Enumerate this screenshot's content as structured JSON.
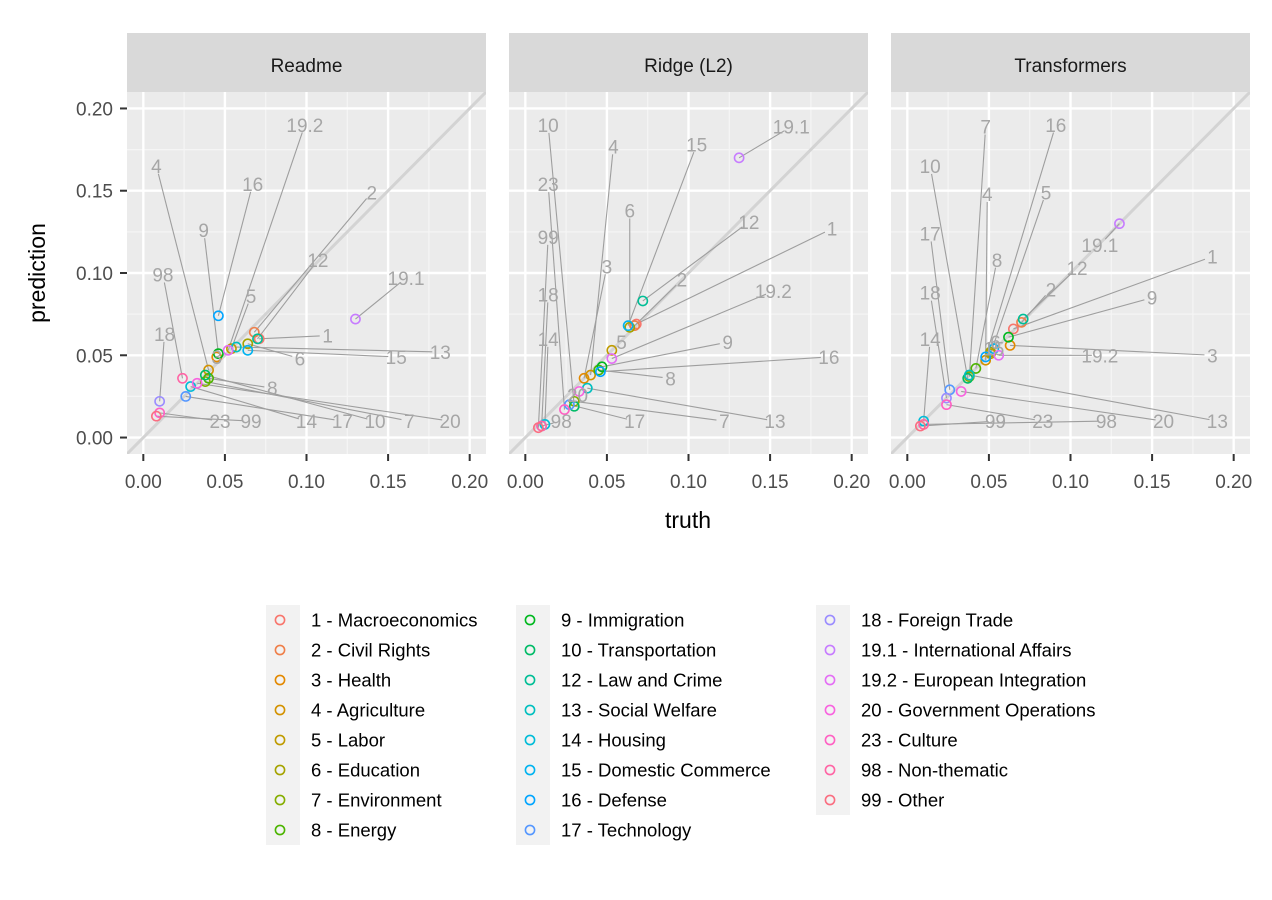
{
  "chart_data": {
    "type": "scatter",
    "xlabel": "truth",
    "ylabel": "prediction",
    "xlim": [
      -0.01,
      0.21
    ],
    "ylim": [
      -0.01,
      0.21
    ],
    "x_ticks": [
      "0.00",
      "0.05",
      "0.10",
      "0.15",
      "0.20"
    ],
    "y_ticks": [
      "0.00",
      "0.05",
      "0.10",
      "0.15",
      "0.20"
    ],
    "reference_line": "y = x",
    "grid": true,
    "legend_position": "bottom",
    "categories": [
      {
        "code": "1",
        "label": "1 - Macroeconomics",
        "color": "#F8766D"
      },
      {
        "code": "2",
        "label": "2 - Civil Rights",
        "color": "#EF7F49"
      },
      {
        "code": "3",
        "label": "3 - Health",
        "color": "#E38900"
      },
      {
        "code": "4",
        "label": "4 - Agriculture",
        "color": "#D39200"
      },
      {
        "code": "5",
        "label": "5 - Labor",
        "color": "#BF9B00"
      },
      {
        "code": "6",
        "label": "6 - Education",
        "color": "#A5A300"
      },
      {
        "code": "7",
        "label": "7 - Environment",
        "color": "#85AD00"
      },
      {
        "code": "8",
        "label": "8 - Energy",
        "color": "#4CB400"
      },
      {
        "code": "9",
        "label": "9 - Immigration",
        "color": "#00B81F"
      },
      {
        "code": "10",
        "label": "10 - Transportation",
        "color": "#00BB67"
      },
      {
        "code": "12",
        "label": "12 - Law and Crime",
        "color": "#00BE96"
      },
      {
        "code": "13",
        "label": "13 - Social Welfare",
        "color": "#00BFBF"
      },
      {
        "code": "14",
        "label": "14 - Housing",
        "color": "#00BCD8"
      },
      {
        "code": "15",
        "label": "15 - Domestic Commerce",
        "color": "#00B3F0"
      },
      {
        "code": "16",
        "label": "16 - Defense",
        "color": "#00A5FF"
      },
      {
        "code": "17",
        "label": "17 - Technology",
        "color": "#5597FF"
      },
      {
        "code": "18",
        "label": "18 - Foreign Trade",
        "color": "#9B8CFF"
      },
      {
        "code": "19.1",
        "label": "19.1 - International Affairs",
        "color": "#C77CFF"
      },
      {
        "code": "19.2",
        "label": "19.2 - European Integration",
        "color": "#E46EF5"
      },
      {
        "code": "20",
        "label": "20 - Government Operations",
        "color": "#F863DF"
      },
      {
        "code": "23",
        "label": "23 - Culture",
        "color": "#FF61C3"
      },
      {
        "code": "98",
        "label": "98 - Non-thematic",
        "color": "#FF65A5"
      },
      {
        "code": "99",
        "label": "99 - Other",
        "color": "#FA6E81"
      }
    ],
    "panels": [
      {
        "title": "Readme",
        "points": [
          {
            "code": "1",
            "x": 0.071,
            "y": 0.06,
            "lx": 0.113,
            "ly": 0.062
          },
          {
            "code": "2",
            "x": 0.068,
            "y": 0.064,
            "lx": 0.14,
            "ly": 0.149
          },
          {
            "code": "3",
            "x": 0.045,
            "y": 0.049,
            "lx": 0.045,
            "ly": 0.049
          },
          {
            "code": "4",
            "x": 0.04,
            "y": 0.041,
            "lx": 0.008,
            "ly": 0.165
          },
          {
            "code": "5",
            "x": 0.054,
            "y": 0.054,
            "lx": 0.066,
            "ly": 0.086
          },
          {
            "code": "6",
            "x": 0.064,
            "y": 0.057,
            "lx": 0.096,
            "ly": 0.048
          },
          {
            "code": "7",
            "x": 0.038,
            "y": 0.034,
            "lx": 0.163,
            "ly": 0.01
          },
          {
            "code": "8",
            "x": 0.04,
            "y": 0.036,
            "lx": 0.079,
            "ly": 0.03
          },
          {
            "code": "9",
            "x": 0.046,
            "y": 0.051,
            "lx": 0.037,
            "ly": 0.126
          },
          {
            "code": "10",
            "x": 0.038,
            "y": 0.038,
            "lx": 0.142,
            "ly": 0.01
          },
          {
            "code": "12",
            "x": 0.07,
            "y": 0.06,
            "lx": 0.107,
            "ly": 0.108
          },
          {
            "code": "13",
            "x": 0.057,
            "y": 0.055,
            "lx": 0.182,
            "ly": 0.052
          },
          {
            "code": "14",
            "x": 0.029,
            "y": 0.031,
            "lx": 0.1,
            "ly": 0.01
          },
          {
            "code": "15",
            "x": 0.064,
            "y": 0.053,
            "lx": 0.155,
            "ly": 0.049
          },
          {
            "code": "16",
            "x": 0.046,
            "y": 0.074,
            "lx": 0.067,
            "ly": 0.154
          },
          {
            "code": "17",
            "x": 0.026,
            "y": 0.025,
            "lx": 0.122,
            "ly": 0.01
          },
          {
            "code": "18",
            "x": 0.01,
            "y": 0.022,
            "lx": 0.013,
            "ly": 0.063
          },
          {
            "code": "19.1",
            "x": 0.13,
            "y": 0.072,
            "lx": 0.161,
            "ly": 0.097
          },
          {
            "code": "19.2",
            "x": 0.052,
            "y": 0.053,
            "lx": 0.099,
            "ly": 0.19
          },
          {
            "code": "20",
            "x": 0.033,
            "y": 0.033,
            "lx": 0.188,
            "ly": 0.01
          },
          {
            "code": "23",
            "x": 0.01,
            "y": 0.015,
            "lx": 0.047,
            "ly": 0.01
          },
          {
            "code": "98",
            "x": 0.024,
            "y": 0.036,
            "lx": 0.012,
            "ly": 0.099
          },
          {
            "code": "99",
            "x": 0.008,
            "y": 0.013,
            "lx": 0.066,
            "ly": 0.01
          }
        ]
      },
      {
        "title": "Ridge (L2)",
        "points": [
          {
            "code": "1",
            "x": 0.068,
            "y": 0.069,
            "lx": 0.188,
            "ly": 0.127
          },
          {
            "code": "2",
            "x": 0.067,
            "y": 0.068,
            "lx": 0.096,
            "ly": 0.096
          },
          {
            "code": "3",
            "x": 0.036,
            "y": 0.036,
            "lx": 0.05,
            "ly": 0.104
          },
          {
            "code": "4",
            "x": 0.04,
            "y": 0.038,
            "lx": 0.054,
            "ly": 0.177
          },
          {
            "code": "5",
            "x": 0.053,
            "y": 0.053,
            "lx": 0.059,
            "ly": 0.058
          },
          {
            "code": "6",
            "x": 0.064,
            "y": 0.067,
            "lx": 0.064,
            "ly": 0.138
          },
          {
            "code": "7",
            "x": 0.03,
            "y": 0.022,
            "lx": 0.122,
            "ly": 0.01
          },
          {
            "code": "8",
            "x": 0.045,
            "y": 0.041,
            "lx": 0.089,
            "ly": 0.036
          },
          {
            "code": "9",
            "x": 0.047,
            "y": 0.043,
            "lx": 0.124,
            "ly": 0.058
          },
          {
            "code": "10",
            "x": 0.03,
            "y": 0.019,
            "lx": 0.014,
            "ly": 0.19
          },
          {
            "code": "12",
            "x": 0.072,
            "y": 0.083,
            "lx": 0.137,
            "ly": 0.131
          },
          {
            "code": "13",
            "x": 0.038,
            "y": 0.03,
            "lx": 0.153,
            "ly": 0.01
          },
          {
            "code": "14",
            "x": 0.012,
            "y": 0.008,
            "lx": 0.014,
            "ly": 0.06
          },
          {
            "code": "15",
            "x": 0.063,
            "y": 0.068,
            "lx": 0.105,
            "ly": 0.178
          },
          {
            "code": "16",
            "x": 0.046,
            "y": 0.04,
            "lx": 0.186,
            "ly": 0.049
          },
          {
            "code": "17",
            "x": 0.027,
            "y": 0.02,
            "lx": 0.067,
            "ly": 0.01
          },
          {
            "code": "18",
            "x": 0.01,
            "y": 0.007,
            "lx": 0.014,
            "ly": 0.087
          },
          {
            "code": "19.1",
            "x": 0.131,
            "y": 0.17,
            "lx": 0.163,
            "ly": 0.189
          },
          {
            "code": "19.2",
            "x": 0.053,
            "y": 0.048,
            "lx": 0.152,
            "ly": 0.089
          },
          {
            "code": "20",
            "x": 0.033,
            "y": 0.028,
            "lx": 0.032,
            "ly": 0.026
          },
          {
            "code": "23",
            "x": 0.024,
            "y": 0.017,
            "lx": 0.014,
            "ly": 0.154
          },
          {
            "code": "98",
            "x": 0.01,
            "y": 0.007,
            "lx": 0.022,
            "ly": 0.01
          },
          {
            "code": "99",
            "x": 0.008,
            "y": 0.006,
            "lx": 0.014,
            "ly": 0.122
          }
        ]
      },
      {
        "title": "Transformers",
        "points": [
          {
            "code": "1",
            "x": 0.065,
            "y": 0.066,
            "lx": 0.187,
            "ly": 0.11
          },
          {
            "code": "2",
            "x": 0.07,
            "y": 0.07,
            "lx": 0.088,
            "ly": 0.09
          },
          {
            "code": "3",
            "x": 0.063,
            "y": 0.056,
            "lx": 0.187,
            "ly": 0.05
          },
          {
            "code": "4",
            "x": 0.048,
            "y": 0.047,
            "lx": 0.049,
            "ly": 0.148
          },
          {
            "code": "5",
            "x": 0.051,
            "y": 0.051,
            "lx": 0.085,
            "ly": 0.149
          },
          {
            "code": "6",
            "x": 0.051,
            "y": 0.052,
            "lx": 0.054,
            "ly": 0.058
          },
          {
            "code": "7",
            "x": 0.038,
            "y": 0.037,
            "lx": 0.048,
            "ly": 0.189
          },
          {
            "code": "8",
            "x": 0.042,
            "y": 0.042,
            "lx": 0.055,
            "ly": 0.108
          },
          {
            "code": "9",
            "x": 0.062,
            "y": 0.061,
            "lx": 0.15,
            "ly": 0.085
          },
          {
            "code": "10",
            "x": 0.037,
            "y": 0.036,
            "lx": 0.014,
            "ly": 0.165
          },
          {
            "code": "12",
            "x": 0.071,
            "y": 0.072,
            "lx": 0.104,
            "ly": 0.103
          },
          {
            "code": "13",
            "x": 0.038,
            "y": 0.038,
            "lx": 0.19,
            "ly": 0.01
          },
          {
            "code": "14",
            "x": 0.01,
            "y": 0.01,
            "lx": 0.014,
            "ly": 0.06
          },
          {
            "code": "15",
            "x": 0.053,
            "y": 0.054,
            "lx": 0.053,
            "ly": 0.054
          },
          {
            "code": "16",
            "x": 0.048,
            "y": 0.049,
            "lx": 0.091,
            "ly": 0.19
          },
          {
            "code": "17",
            "x": 0.026,
            "y": 0.029,
            "lx": 0.014,
            "ly": 0.124
          },
          {
            "code": "18",
            "x": 0.024,
            "y": 0.024,
            "lx": 0.014,
            "ly": 0.088
          },
          {
            "code": "19.1",
            "x": 0.13,
            "y": 0.13,
            "lx": 0.118,
            "ly": 0.117
          },
          {
            "code": "19.2",
            "x": 0.056,
            "y": 0.05,
            "lx": 0.118,
            "ly": 0.05
          },
          {
            "code": "20",
            "x": 0.033,
            "y": 0.028,
            "lx": 0.157,
            "ly": 0.01
          },
          {
            "code": "23",
            "x": 0.024,
            "y": 0.02,
            "lx": 0.083,
            "ly": 0.01
          },
          {
            "code": "98",
            "x": 0.01,
            "y": 0.008,
            "lx": 0.122,
            "ly": 0.01
          },
          {
            "code": "99",
            "x": 0.008,
            "y": 0.007,
            "lx": 0.054,
            "ly": 0.01
          }
        ]
      }
    ]
  }
}
